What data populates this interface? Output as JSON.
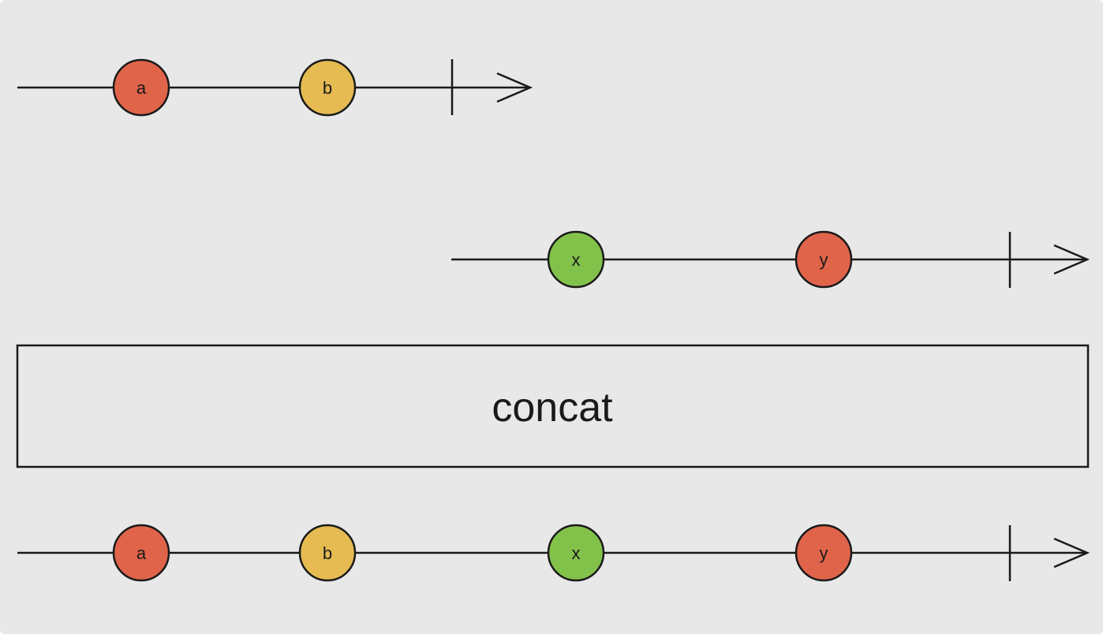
{
  "colors": {
    "background": "#e8e8e8",
    "stroke": "#1a1a1a",
    "red": "#e0644a",
    "yellow": "#e5bb52",
    "green": "#82c24b"
  },
  "streams": [
    {
      "id": "source-a",
      "items": [
        {
          "label": "a",
          "color": "red"
        },
        {
          "label": "b",
          "color": "yellow"
        }
      ]
    },
    {
      "id": "source-b",
      "items": [
        {
          "label": "x",
          "color": "green"
        },
        {
          "label": "y",
          "color": "red"
        }
      ]
    }
  ],
  "operator": {
    "label": "concat"
  },
  "output": {
    "id": "output",
    "items": [
      {
        "label": "a",
        "color": "red"
      },
      {
        "label": "b",
        "color": "yellow"
      },
      {
        "label": "x",
        "color": "green"
      },
      {
        "label": "y",
        "color": "red"
      }
    ]
  }
}
